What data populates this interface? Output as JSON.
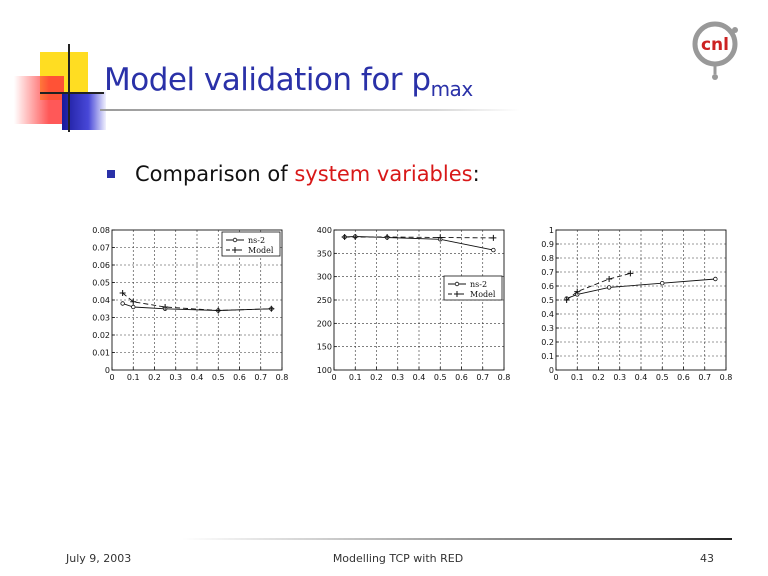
{
  "slide": {
    "title_main": "Model validation for p",
    "title_sub": "max",
    "bullet_lead": "Comparison of ",
    "bullet_highlight": "system variables",
    "bullet_tail": ":",
    "highlight_color": "#d81818",
    "title_color": "#2a31a8"
  },
  "footer": {
    "date": "July 9, 2003",
    "center": "Modelling TCP with RED",
    "page": "43"
  },
  "logo": {
    "text": "cnl",
    "icon": "cnl-logo-icon"
  },
  "chart_data": [
    {
      "type": "line",
      "xlim": [
        0,
        0.8
      ],
      "ylim": [
        0,
        0.08
      ],
      "xticks": [
        "0",
        "0.1",
        "0.2",
        "0.3",
        "0.4",
        "0.5",
        "0.6",
        "0.7",
        "0.8"
      ],
      "yticks": [
        "0",
        "0.01",
        "0.02",
        "0.03",
        "0.04",
        "0.05",
        "0.06",
        "0.07",
        "0.08"
      ],
      "grid": true,
      "legend": "top-right",
      "series": [
        {
          "name": "ns-2",
          "marker": "circle",
          "dash": "solid",
          "x": [
            0.05,
            0.1,
            0.25,
            0.5,
            0.75
          ],
          "y": [
            0.038,
            0.036,
            0.035,
            0.034,
            0.035
          ]
        },
        {
          "name": "Model",
          "marker": "plus",
          "dash": "dashed",
          "x": [
            0.05,
            0.1,
            0.25,
            0.5,
            0.75
          ],
          "y": [
            0.044,
            0.039,
            0.036,
            0.034,
            0.035
          ]
        }
      ]
    },
    {
      "type": "line",
      "xlim": [
        0,
        0.8
      ],
      "ylim": [
        100,
        400
      ],
      "xticks": [
        "0",
        "0.1",
        "0.2",
        "0.3",
        "0.4",
        "0.5",
        "0.6",
        "0.7",
        "0.8"
      ],
      "yticks": [
        "100",
        "150",
        "200",
        "250",
        "300",
        "350",
        "400"
      ],
      "grid": true,
      "legend": "center-right",
      "series": [
        {
          "name": "ns-2",
          "marker": "circle",
          "dash": "solid",
          "x": [
            0.05,
            0.1,
            0.25,
            0.5,
            0.75
          ],
          "y": [
            385,
            386,
            384,
            380,
            357
          ]
        },
        {
          "name": "Model",
          "marker": "plus",
          "dash": "dashed",
          "x": [
            0.05,
            0.1,
            0.25,
            0.5,
            0.75
          ],
          "y": [
            385,
            385,
            385,
            384,
            383
          ]
        }
      ]
    },
    {
      "type": "line",
      "xlim": [
        0,
        0.8
      ],
      "ylim": [
        0,
        1
      ],
      "xticks": [
        "0",
        "0.1",
        "0.2",
        "0.3",
        "0.4",
        "0.5",
        "0.6",
        "0.7",
        "0.8"
      ],
      "yticks": [
        "0",
        "0.1",
        "0.2",
        "0.3",
        "0.4",
        "0.5",
        "0.6",
        "0.7",
        "0.8",
        "0.9",
        "1"
      ],
      "grid": true,
      "legend": "none",
      "series": [
        {
          "marker": "circle",
          "dash": "solid",
          "x": [
            0.05,
            0.1,
            0.25,
            0.5,
            0.75
          ],
          "y": [
            0.51,
            0.54,
            0.59,
            0.62,
            0.65
          ]
        },
        {
          "marker": "plus",
          "dash": "dashed",
          "x": [
            0.05,
            0.1,
            0.25,
            0.35
          ],
          "y": [
            0.5,
            0.56,
            0.65,
            0.69
          ]
        }
      ]
    }
  ]
}
